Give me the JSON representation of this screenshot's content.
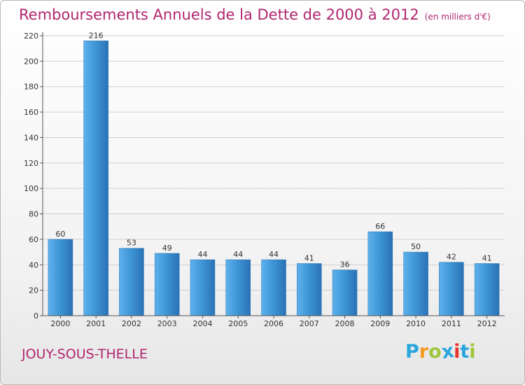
{
  "title": "Remboursements Annuels de la Dette de 2000 à 2012",
  "subtitle": "(en milliers d'€)",
  "location": "JOUY-SOUS-THELLE",
  "brand": {
    "letters": [
      "P",
      "r",
      "o",
      "x",
      "i",
      "t",
      "i"
    ],
    "colors": [
      "#2aa6dc",
      "#f39a1f",
      "#9fc63b",
      "#2aa6dc",
      "#e7352b",
      "#2aa6dc",
      "#9fc63b"
    ]
  },
  "colors": {
    "bar": "#3f97d6",
    "bar_light": "#5eb1ec",
    "bar_dark": "#2a72b5",
    "title": "#b0266f",
    "grid": "#cfcfcf"
  },
  "chart_data": {
    "type": "bar",
    "categories": [
      "2000",
      "2001",
      "2002",
      "2003",
      "2004",
      "2005",
      "2006",
      "2007",
      "2008",
      "2009",
      "2010",
      "2011",
      "2012"
    ],
    "values": [
      60,
      216,
      53,
      49,
      44,
      44,
      44,
      41,
      36,
      66,
      50,
      42,
      41
    ],
    "value_labels": [
      "60",
      "216",
      "53",
      "49",
      "44",
      "44",
      "44",
      "41",
      "36",
      "66",
      "50",
      "42",
      "41"
    ],
    "yticks": [
      0,
      20,
      40,
      60,
      80,
      100,
      120,
      140,
      160,
      180,
      200,
      220
    ],
    "ytick_labels": [
      "0",
      "20",
      "40",
      "60",
      "80",
      "100",
      "120",
      "140",
      "160",
      "180",
      "200",
      "220"
    ],
    "ylim": [
      0,
      220
    ],
    "grid": true,
    "legend": "none"
  }
}
